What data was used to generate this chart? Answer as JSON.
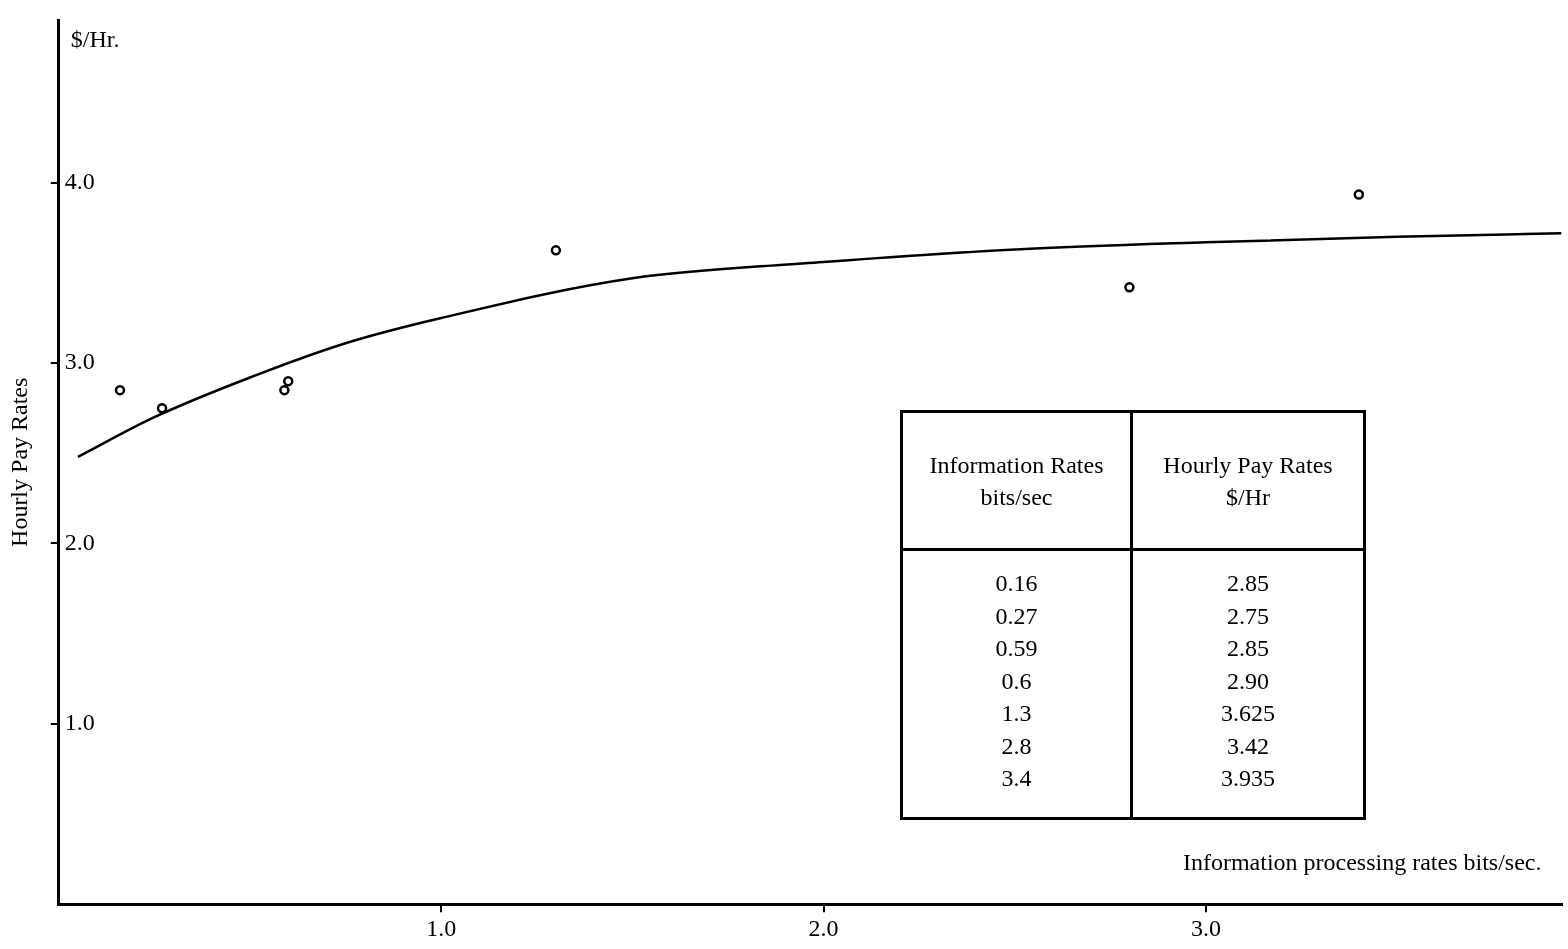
{
  "chart_data": [
    {
      "type": "scatter",
      "xlabel": "Information processing rates bits/sec.",
      "ylabel": "Hourly Pay Rates",
      "annotations": [
        "$/Hr."
      ],
      "xlim": [
        0,
        3.93
      ],
      "ylim": [
        0,
        4.9
      ],
      "xticks": [
        {
          "value": 1,
          "label": "1.0"
        },
        {
          "value": 2,
          "label": "2.0"
        },
        {
          "value": 3,
          "label": "3.0"
        }
      ],
      "yticks": [
        {
          "value": 1,
          "label": "1.0"
        },
        {
          "value": 2,
          "label": "2.0"
        },
        {
          "value": 3,
          "label": "3.0"
        },
        {
          "value": 4,
          "label": "4.0"
        }
      ],
      "grid": false,
      "legend": false,
      "marker": "circle",
      "series": [
        {
          "type": "scatter",
          "color": "#000000",
          "x": [
            0.16,
            0.27,
            0.59,
            0.6,
            1.3,
            2.8,
            3.4
          ],
          "values": [
            2.85,
            2.75,
            2.85,
            2.9,
            3.625,
            3.42,
            3.935
          ]
        },
        {
          "type": "line",
          "color": "#000000",
          "marker": "none",
          "x": [
            0.05,
            0.25,
            0.5,
            0.75,
            1.0,
            1.5,
            2.0,
            2.5,
            3.0,
            3.5,
            3.93
          ],
          "values": [
            2.48,
            2.7,
            2.92,
            3.11,
            3.25,
            3.47,
            3.56,
            3.63,
            3.67,
            3.7,
            3.72
          ]
        }
      ]
    },
    {
      "type": "other",
      "annotations": [
        "Information Rates bits/sec",
        "Hourly Pay Rates $/Hr",
        "0.16",
        "2.85",
        "0.27",
        "2.75",
        "0.59",
        "2.85",
        "0.6",
        "2.90",
        "1.3",
        "3.625",
        "2.8",
        "3.42",
        "3.4",
        "3.935"
      ]
    }
  ]
}
